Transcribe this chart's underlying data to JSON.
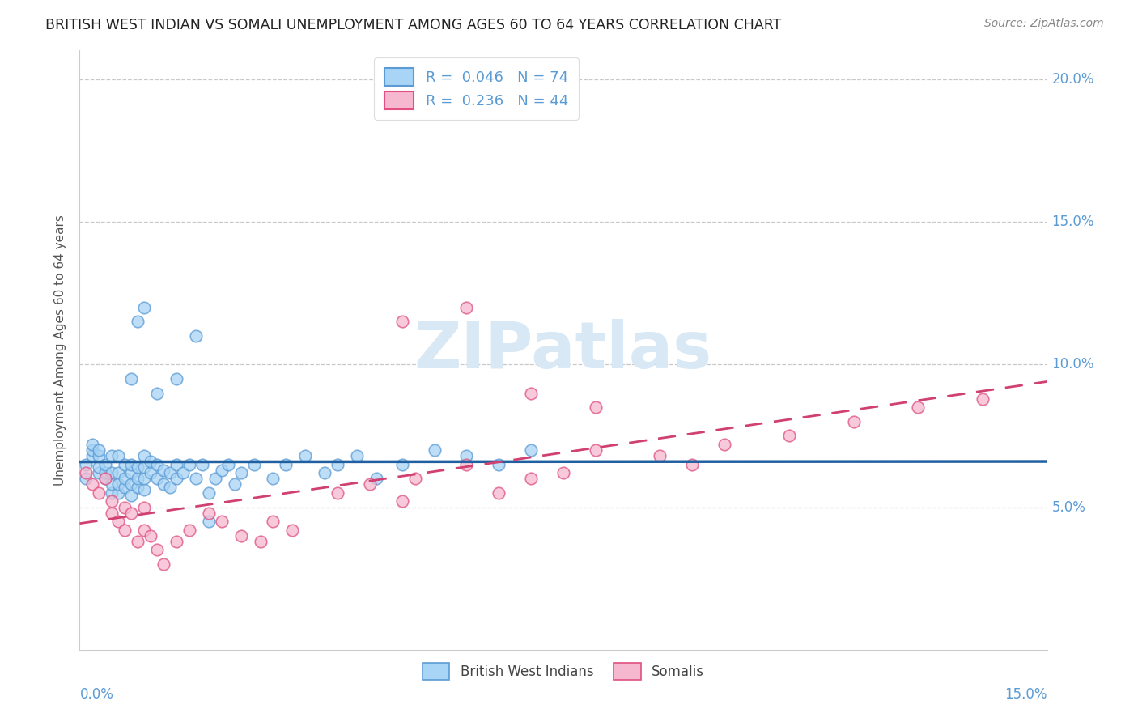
{
  "title": "BRITISH WEST INDIAN VS SOMALI UNEMPLOYMENT AMONG AGES 60 TO 64 YEARS CORRELATION CHART",
  "source": "Source: ZipAtlas.com",
  "ylabel": "Unemployment Among Ages 60 to 64 years",
  "xlim": [
    0.0,
    0.15
  ],
  "ylim": [
    0.0,
    0.21
  ],
  "yticks": [
    0.05,
    0.1,
    0.15,
    0.2
  ],
  "ytick_labels": [
    "5.0%",
    "10.0%",
    "15.0%",
    "20.0%"
  ],
  "r1": "0.046",
  "n1": "74",
  "r2": "0.236",
  "n2": "44",
  "legend_label1": "British West Indians",
  "legend_label2": "Somalis",
  "color_bwi_fill": "#A8D4F5",
  "color_bwi_edge": "#5B9BD5",
  "color_somali_fill": "#F5B8CF",
  "color_somali_edge": "#E05080",
  "color_bwi_trend": "#2060A0",
  "color_somali_trend": "#D04070",
  "watermark_color": "#D8E8F5",
  "grid_color": "#C8C8C8",
  "background_color": "#FFFFFF",
  "tick_color": "#5B9BD5",
  "bwi_x": [
    0.001,
    0.001,
    0.002,
    0.002,
    0.002,
    0.003,
    0.003,
    0.003,
    0.003,
    0.004,
    0.004,
    0.004,
    0.005,
    0.005,
    0.005,
    0.005,
    0.006,
    0.006,
    0.006,
    0.006,
    0.007,
    0.007,
    0.007,
    0.008,
    0.008,
    0.008,
    0.008,
    0.009,
    0.009,
    0.009,
    0.01,
    0.01,
    0.01,
    0.01,
    0.011,
    0.011,
    0.012,
    0.012,
    0.013,
    0.013,
    0.014,
    0.014,
    0.015,
    0.015,
    0.016,
    0.017,
    0.018,
    0.019,
    0.02,
    0.021,
    0.022,
    0.023,
    0.024,
    0.025,
    0.027,
    0.03,
    0.032,
    0.035,
    0.038,
    0.04,
    0.043,
    0.046,
    0.05,
    0.055,
    0.06,
    0.065,
    0.07,
    0.008,
    0.009,
    0.01,
    0.012,
    0.015,
    0.018,
    0.02
  ],
  "bwi_y": [
    0.06,
    0.065,
    0.068,
    0.07,
    0.072,
    0.062,
    0.064,
    0.068,
    0.07,
    0.06,
    0.062,
    0.065,
    0.055,
    0.058,
    0.062,
    0.068,
    0.055,
    0.058,
    0.062,
    0.068,
    0.057,
    0.06,
    0.065,
    0.054,
    0.058,
    0.062,
    0.065,
    0.057,
    0.06,
    0.064,
    0.056,
    0.06,
    0.064,
    0.068,
    0.062,
    0.066,
    0.06,
    0.065,
    0.058,
    0.063,
    0.057,
    0.062,
    0.06,
    0.065,
    0.062,
    0.065,
    0.06,
    0.065,
    0.055,
    0.06,
    0.063,
    0.065,
    0.058,
    0.062,
    0.065,
    0.06,
    0.065,
    0.068,
    0.062,
    0.065,
    0.068,
    0.06,
    0.065,
    0.07,
    0.068,
    0.065,
    0.07,
    0.095,
    0.115,
    0.12,
    0.09,
    0.095,
    0.11,
    0.045
  ],
  "somali_x": [
    0.001,
    0.002,
    0.003,
    0.004,
    0.005,
    0.005,
    0.006,
    0.007,
    0.007,
    0.008,
    0.009,
    0.01,
    0.01,
    0.011,
    0.012,
    0.013,
    0.015,
    0.017,
    0.02,
    0.022,
    0.025,
    0.028,
    0.03,
    0.033,
    0.04,
    0.045,
    0.05,
    0.052,
    0.06,
    0.065,
    0.07,
    0.075,
    0.08,
    0.09,
    0.095,
    0.1,
    0.11,
    0.12,
    0.13,
    0.14,
    0.05,
    0.06,
    0.07,
    0.08
  ],
  "somali_y": [
    0.062,
    0.058,
    0.055,
    0.06,
    0.048,
    0.052,
    0.045,
    0.042,
    0.05,
    0.048,
    0.038,
    0.042,
    0.05,
    0.04,
    0.035,
    0.03,
    0.038,
    0.042,
    0.048,
    0.045,
    0.04,
    0.038,
    0.045,
    0.042,
    0.055,
    0.058,
    0.052,
    0.06,
    0.065,
    0.055,
    0.06,
    0.062,
    0.07,
    0.068,
    0.065,
    0.072,
    0.075,
    0.08,
    0.085,
    0.088,
    0.115,
    0.12,
    0.09,
    0.085
  ]
}
